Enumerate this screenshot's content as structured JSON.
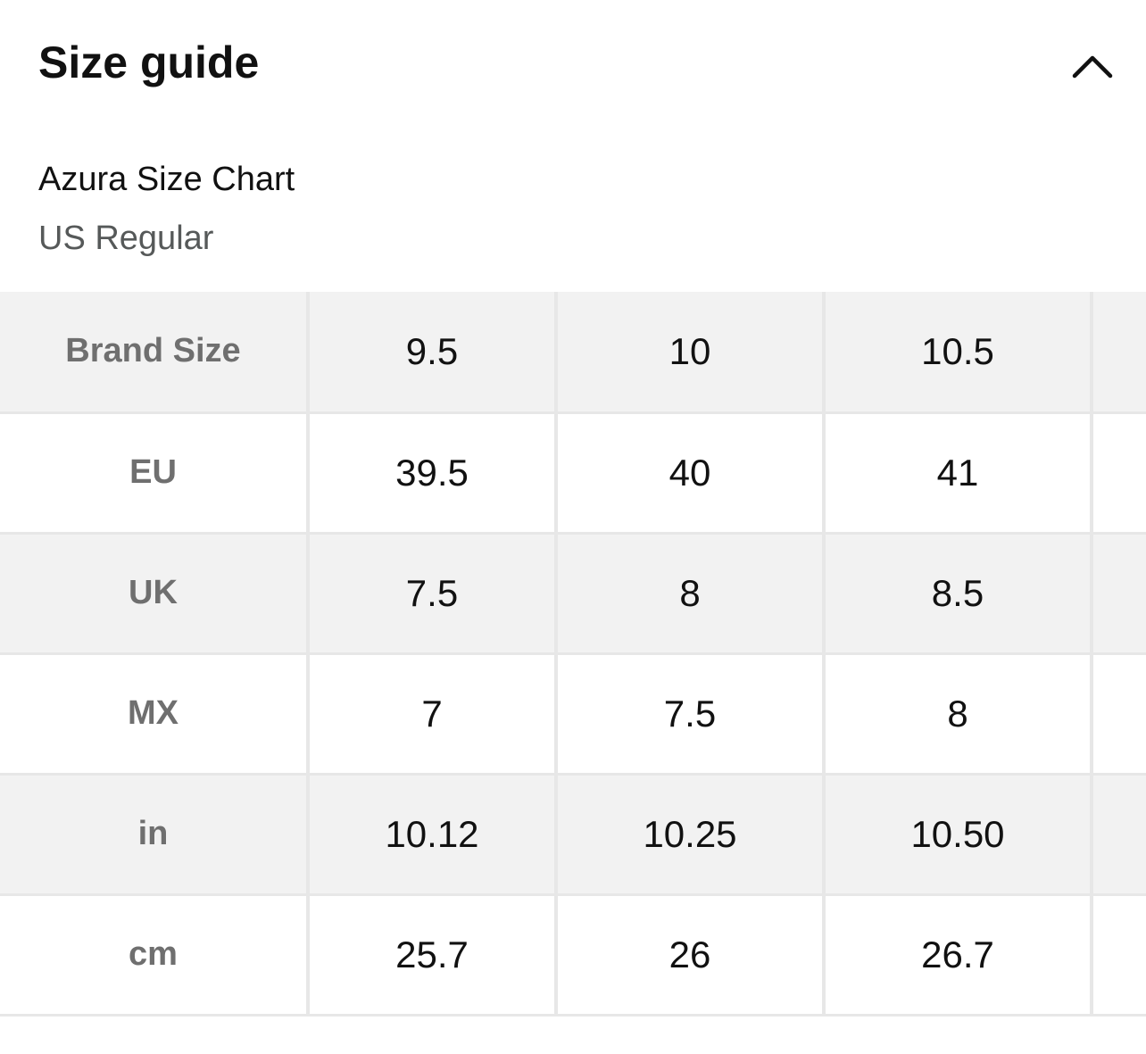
{
  "header": {
    "title": "Size guide",
    "collapse_icon": "chevron-up-icon"
  },
  "chart": {
    "title": "Azura Size Chart",
    "region": "US Regular"
  },
  "table": {
    "rows": [
      {
        "label": "Brand Size",
        "values": [
          "9.5",
          "10",
          "10.5"
        ]
      },
      {
        "label": "EU",
        "values": [
          "39.5",
          "40",
          "41"
        ]
      },
      {
        "label": "UK",
        "values": [
          "7.5",
          "8",
          "8.5"
        ]
      },
      {
        "label": "MX",
        "values": [
          "7",
          "7.5",
          "8"
        ]
      },
      {
        "label": "in",
        "values": [
          "10.12",
          "10.25",
          "10.50"
        ]
      },
      {
        "label": "cm",
        "values": [
          "25.7",
          "26",
          "26.7"
        ]
      }
    ]
  },
  "colors": {
    "shaded_row": "#f2f2f2",
    "border": "#e7e7e7",
    "label_text": "#6f6f6f",
    "secondary_text": "#565959"
  }
}
